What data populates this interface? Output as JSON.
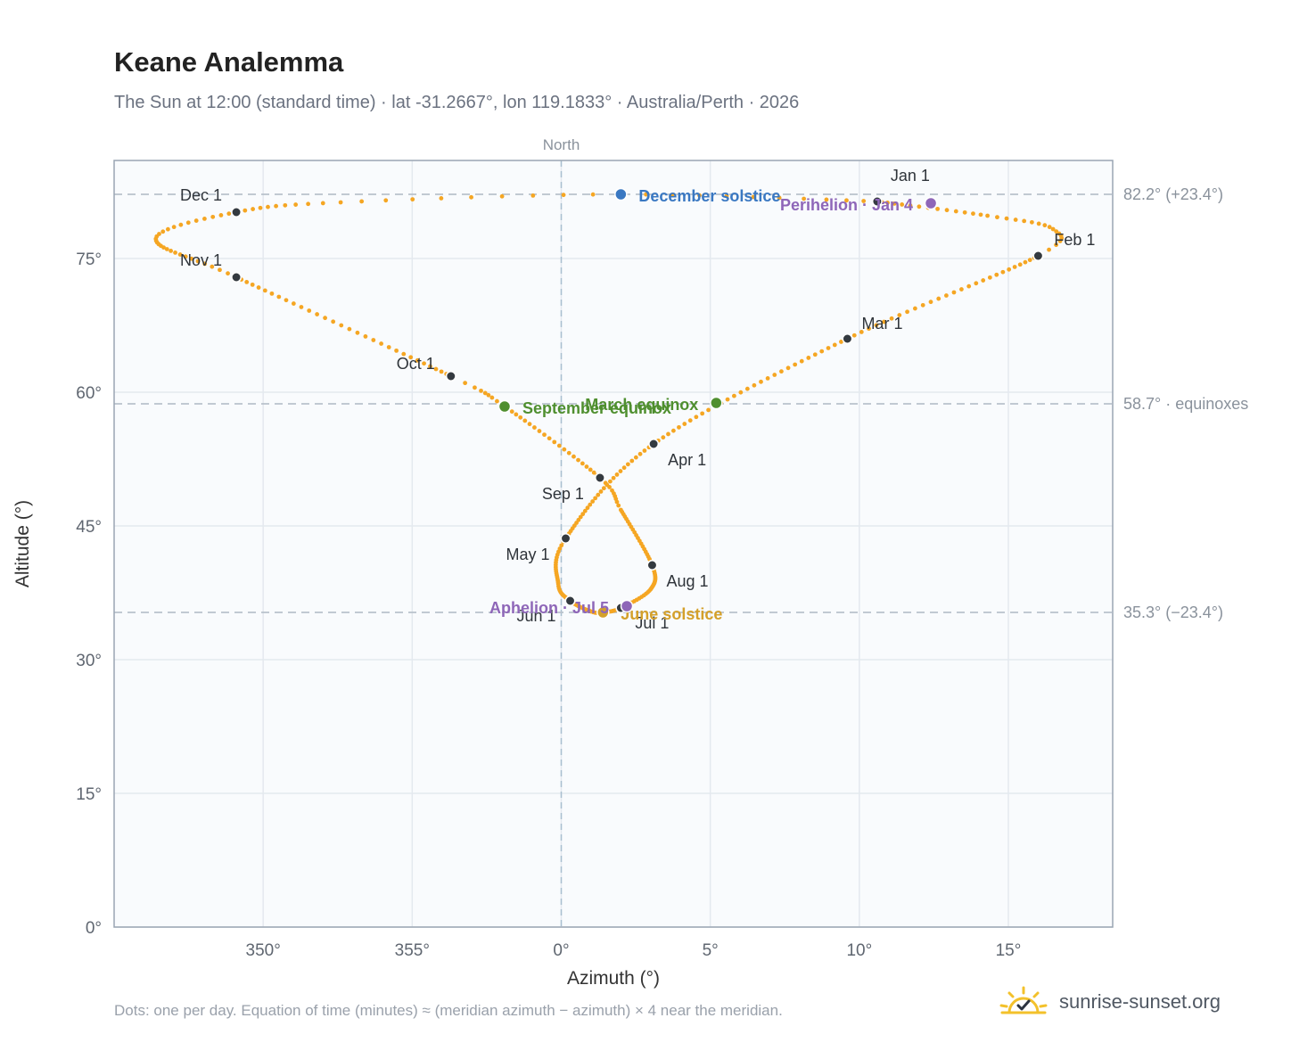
{
  "header": {
    "title": "Keane Analemma",
    "subtitle": "The Sun at 12:00 (standard time) · lat -31.2667°, lon 119.1833° · Australia/Perth · 2026"
  },
  "footer": {
    "note": "Dots: one per day. Equation of time (minutes) ≈ (meridian azimuth − azimuth) × 4 near the meridian.",
    "brand": "sunrise-sunset.org",
    "brand_icon": "sun-check-icon"
  },
  "chart_data": {
    "type": "scatter",
    "xlabel": "Azimuth (°)",
    "ylabel": "Altitude (°)",
    "xlim": [
      345,
      18.5
    ],
    "ylim": [
      0,
      86
    ],
    "x_ticks": [
      350,
      355,
      0,
      5,
      10,
      15
    ],
    "x_tick_labels": [
      "350°",
      "355°",
      "0°",
      "5°",
      "10°",
      "15°"
    ],
    "y_ticks": [
      0,
      15,
      30,
      45,
      60,
      75
    ],
    "y_tick_labels": [
      "0°",
      "15°",
      "30°",
      "45°",
      "60°",
      "75°"
    ],
    "grid": true,
    "north_label": "North",
    "north_azimuth": 0,
    "reference_lines": [
      {
        "altitude": 82.2,
        "label": "82.2° (+23.4°)"
      },
      {
        "altitude": 58.7,
        "label": "58.7° · equinoxes"
      },
      {
        "altitude": 35.3,
        "label": "35.3° (−23.4°)"
      }
    ],
    "series": [
      {
        "marker": "daily dots",
        "color": "#f5a623",
        "anchor_points": [
          {
            "day": 1,
            "az": 10.6,
            "alt": 81.4
          },
          {
            "day": 15,
            "az": 14.3,
            "alt": 79.8
          },
          {
            "day": 24,
            "az": 16.5,
            "alt": 78.3
          },
          {
            "day": 32,
            "az": 16.0,
            "alt": 75.3
          },
          {
            "day": 60,
            "az": 9.6,
            "alt": 66.0
          },
          {
            "day": 91,
            "az": 3.1,
            "alt": 54.2
          },
          {
            "day": 121,
            "az": 0.15,
            "alt": 43.6
          },
          {
            "day": 140,
            "az": -0.1,
            "alt": 38.5
          },
          {
            "day": 152,
            "az": 0.3,
            "alt": 36.6
          },
          {
            "day": 165,
            "az": 1.0,
            "alt": 35.4
          },
          {
            "day": 172,
            "az": 1.4,
            "alt": 35.3
          },
          {
            "day": 182,
            "az": 2.0,
            "alt": 35.8
          },
          {
            "day": 196,
            "az": 3.0,
            "alt": 37.9
          },
          {
            "day": 213,
            "az": 3.05,
            "alt": 40.6
          },
          {
            "day": 235,
            "az": 2.0,
            "alt": 46.8
          },
          {
            "day": 244,
            "az": 1.3,
            "alt": 50.4
          },
          {
            "day": 266,
            "az": -1.9,
            "alt": 58.4
          },
          {
            "day": 274,
            "az": -3.7,
            "alt": 61.8
          },
          {
            "day": 305,
            "az": -10.9,
            "alt": 72.9
          },
          {
            "day": 322,
            "az": -13.6,
            "alt": 77.2
          },
          {
            "day": 335,
            "az": -10.9,
            "alt": 80.2
          },
          {
            "day": 345,
            "az": -7.4,
            "alt": 81.3
          },
          {
            "day": 355,
            "az": 2.0,
            "alt": 82.2
          },
          {
            "day": 366,
            "az": 10.6,
            "alt": 81.4
          }
        ]
      }
    ],
    "month_markers": [
      {
        "label": "Jan 1",
        "az": 10.6,
        "alt": 81.4
      },
      {
        "label": "Feb 1",
        "az": 16.0,
        "alt": 75.3
      },
      {
        "label": "Mar 1",
        "az": 9.6,
        "alt": 66.0
      },
      {
        "label": "Apr 1",
        "az": 3.1,
        "alt": 54.2
      },
      {
        "label": "May 1",
        "az": 0.15,
        "alt": 43.6
      },
      {
        "label": "Jun 1",
        "az": 0.3,
        "alt": 36.6
      },
      {
        "label": "Jul 1",
        "az": 2.0,
        "alt": 35.8
      },
      {
        "label": "Aug 1",
        "az": 3.05,
        "alt": 40.6
      },
      {
        "label": "Sep 1",
        "az": 1.3,
        "alt": 50.4
      },
      {
        "label": "Oct 1",
        "az": -3.7,
        "alt": 61.8
      },
      {
        "label": "Nov 1",
        "az": -10.9,
        "alt": 72.9
      },
      {
        "label": "Dec 1",
        "az": -10.9,
        "alt": 80.2
      }
    ],
    "events": [
      {
        "label": "December solstice",
        "az": 2.0,
        "alt": 82.2,
        "color": "#3a78c2"
      },
      {
        "label": "Perihelion · Jan 4",
        "az": 12.4,
        "alt": 81.2,
        "color": "#8e66b8"
      },
      {
        "label": "March equinox",
        "az": 5.2,
        "alt": 58.8,
        "color": "#4f8f2f"
      },
      {
        "label": "September equinox",
        "az": -1.9,
        "alt": 58.4,
        "color": "#4f8f2f"
      },
      {
        "label": "June solstice",
        "az": 1.4,
        "alt": 35.3,
        "color": "#d4a02a"
      },
      {
        "label": "Aphelion · Jul 5",
        "az": 2.2,
        "alt": 36.0,
        "color": "#8e66b8"
      }
    ]
  }
}
